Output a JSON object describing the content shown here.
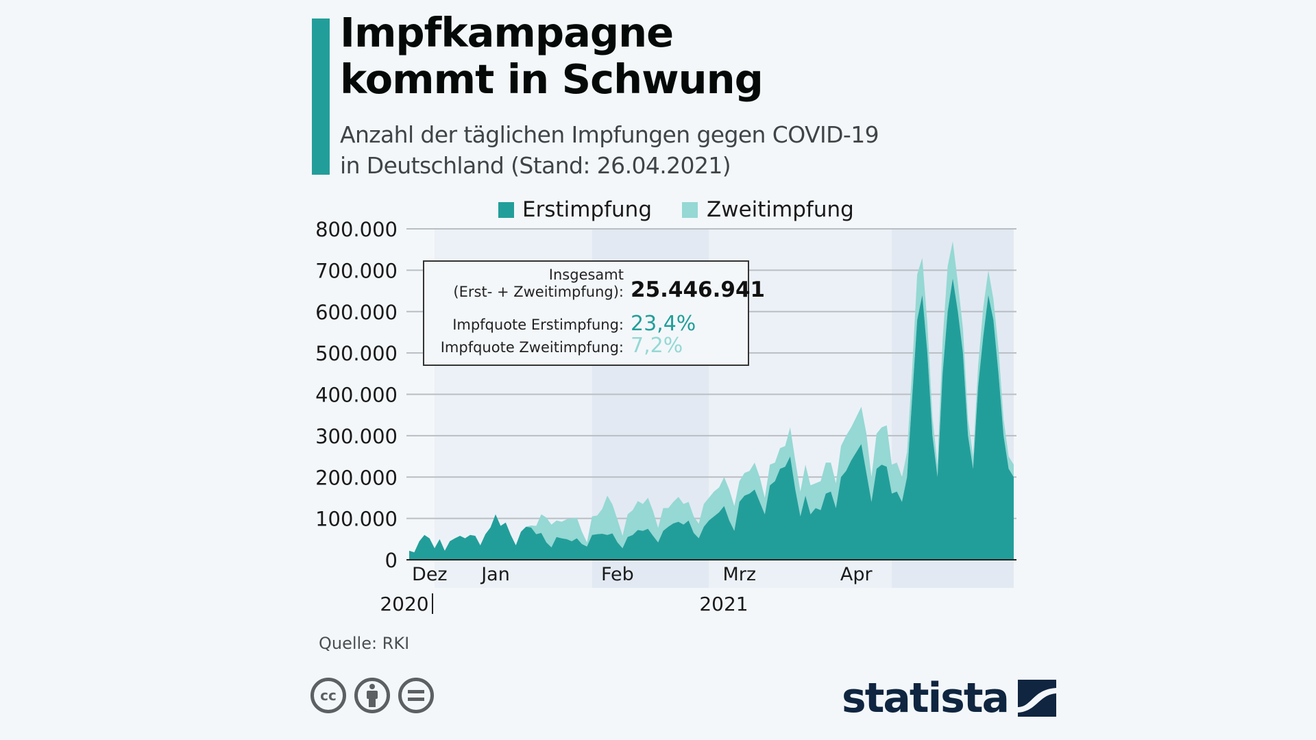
{
  "header": {
    "title_line1": "Impfkampagne",
    "title_line2": "kommt in Schwung",
    "subtitle_line1": "Anzahl der täglichen Impfungen gegen COVID-19",
    "subtitle_line2": "in Deutschland (Stand: 26.04.2021)"
  },
  "colors": {
    "accent": "#229e9a",
    "erstimpfung": "#229e9a",
    "zweitimpfung": "#95d8d4",
    "band_a": "#ecf1f7",
    "band_b": "#e2e9f2",
    "background": "#f3f7fa",
    "logo": "#0f2540"
  },
  "info_box": {
    "total_label_line1": "Insgesamt",
    "total_label_line2": "(Erst- + Zweitimpfung):",
    "total_value": "25.446.941",
    "quote_erst_label": "Impfquote Erstimpfung:",
    "quote_erst_value": "23,4%",
    "quote_zweit_label": "Impfquote Zweitimpfung:",
    "quote_zweit_value": "7,2%"
  },
  "chart_data": {
    "type": "area",
    "stacked": true,
    "title": "Anzahl der täglichen Impfungen gegen COVID-19 in Deutschland",
    "xlabel": "",
    "ylabel": "",
    "ylim": [
      0,
      800000
    ],
    "yticks": [
      0,
      100000,
      200000,
      300000,
      400000,
      500000,
      600000,
      700000,
      800000
    ],
    "ytick_labels": [
      "0",
      "100.000",
      "200.000",
      "300.000",
      "400.000",
      "500.000",
      "600.000",
      "700.000",
      "800.000"
    ],
    "x_start": "2020-12-27",
    "x_end": "2021-04-25",
    "month_ticks": [
      {
        "label": "Dez",
        "day_index": 2
      },
      {
        "label": "Jan",
        "day_index": 17
      },
      {
        "label": "Feb",
        "day_index": 41
      },
      {
        "label": "Mrz",
        "day_index": 65
      },
      {
        "label": "Apr",
        "day_index": 88
      }
    ],
    "month_bands": [
      {
        "start": 5,
        "end": 36
      },
      {
        "start": 36,
        "end": 59
      },
      {
        "start": 59,
        "end": 95
      },
      {
        "start": 95,
        "end": 119
      }
    ],
    "year_labels": [
      {
        "label": "2020",
        "day_index": 2
      },
      {
        "label": "2021",
        "day_index": 50
      }
    ],
    "legend": [
      "Erstimpfung",
      "Zweitimpfung"
    ],
    "legend_position": "top-center",
    "grid": true,
    "series": [
      {
        "name": "Erstimpfung",
        "values": [
          22000,
          18000,
          45000,
          60000,
          52000,
          28000,
          50000,
          22000,
          45000,
          52000,
          58000,
          52000,
          60000,
          58000,
          35000,
          62000,
          78000,
          110000,
          82000,
          90000,
          60000,
          35000,
          68000,
          80000,
          78000,
          62000,
          65000,
          42000,
          30000,
          55000,
          52000,
          50000,
          45000,
          52000,
          38000,
          32000,
          60000,
          62000,
          63000,
          60000,
          64000,
          42000,
          28000,
          55000,
          60000,
          72000,
          70000,
          75000,
          58000,
          42000,
          70000,
          80000,
          88000,
          92000,
          85000,
          95000,
          65000,
          52000,
          80000,
          95000,
          105000,
          115000,
          130000,
          95000,
          70000,
          140000,
          155000,
          160000,
          170000,
          140000,
          110000,
          180000,
          190000,
          220000,
          225000,
          250000,
          170000,
          105000,
          155000,
          110000,
          125000,
          120000,
          160000,
          165000,
          125000,
          200000,
          215000,
          240000,
          260000,
          280000,
          210000,
          140000,
          220000,
          230000,
          225000,
          160000,
          165000,
          140000,
          200000,
          390000,
          580000,
          640000,
          500000,
          300000,
          200000,
          450000,
          600000,
          680000,
          600000,
          500000,
          300000,
          220000,
          420000,
          540000,
          640000,
          580000,
          450000,
          300000,
          220000,
          200000
        ],
        "note": "values approximated from chart"
      },
      {
        "name": "Zweitimpfung",
        "values": [
          0,
          0,
          0,
          0,
          0,
          0,
          0,
          0,
          0,
          0,
          0,
          0,
          0,
          0,
          0,
          0,
          0,
          0,
          0,
          0,
          0,
          0,
          0,
          0,
          5000,
          20000,
          45000,
          60000,
          55000,
          40000,
          40000,
          48000,
          55000,
          50000,
          30000,
          10000,
          45000,
          45000,
          60000,
          95000,
          70000,
          55000,
          30000,
          55000,
          60000,
          70000,
          65000,
          75000,
          60000,
          35000,
          55000,
          45000,
          52000,
          60000,
          50000,
          45000,
          40000,
          35000,
          55000,
          55000,
          60000,
          60000,
          70000,
          75000,
          60000,
          50000,
          55000,
          55000,
          65000,
          60000,
          40000,
          50000,
          45000,
          50000,
          50000,
          70000,
          70000,
          60000,
          75000,
          70000,
          60000,
          70000,
          75000,
          70000,
          60000,
          75000,
          85000,
          80000,
          85000,
          90000,
          95000,
          60000,
          85000,
          90000,
          100000,
          70000,
          70000,
          60000,
          60000,
          70000,
          110000,
          90000,
          70000,
          45000,
          30000,
          80000,
          110000,
          90000,
          70000,
          60000,
          40000,
          30000,
          50000,
          70000,
          60000,
          50000,
          60000,
          40000,
          30000,
          30000
        ]
      }
    ]
  },
  "footer": {
    "source": "Quelle: RKI",
    "license_icons": [
      "cc-icon",
      "attribution-icon",
      "no-derivatives-icon"
    ],
    "logo_text": "statista"
  }
}
